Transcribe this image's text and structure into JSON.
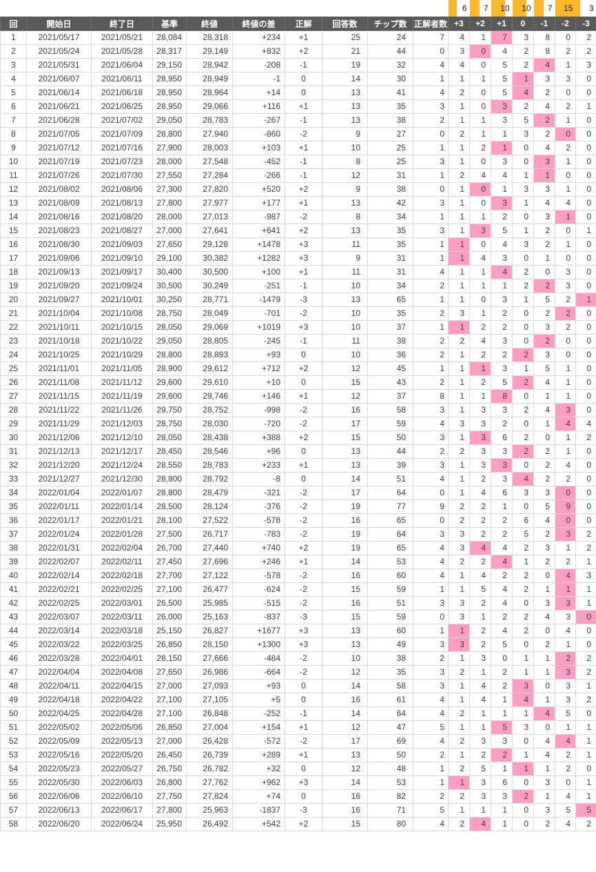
{
  "colors": {
    "header_bg": "#595959",
    "highlight_pink": "#FF9DC5",
    "bar_orange": "#FFB628"
  },
  "table": {
    "summary_bar": {
      "max": 15,
      "values": [
        6,
        7,
        10,
        10,
        7,
        15,
        3
      ]
    },
    "columns": [
      {
        "key": "round",
        "label": "回"
      },
      {
        "key": "start-date",
        "label": "開始日"
      },
      {
        "key": "end-date",
        "label": "終了日"
      },
      {
        "key": "base-price",
        "label": "基準"
      },
      {
        "key": "close-price",
        "label": "終値"
      },
      {
        "key": "close-diff",
        "label": "終値の差"
      },
      {
        "key": "correct-answer",
        "label": "正解"
      },
      {
        "key": "answer-count",
        "label": "回答数"
      },
      {
        "key": "chip-count",
        "label": "チップ数"
      },
      {
        "key": "winner-count",
        "label": "正解者数"
      },
      {
        "key": "dist-p3",
        "label": "+3"
      },
      {
        "key": "dist-p2",
        "label": "+2"
      },
      {
        "key": "dist-p1",
        "label": "+1"
      },
      {
        "key": "dist-0",
        "label": "0"
      },
      {
        "key": "dist-m1",
        "label": "-1"
      },
      {
        "key": "dist-m2",
        "label": "-2"
      },
      {
        "key": "dist-m3",
        "label": "-3"
      }
    ],
    "rows": [
      [
        1,
        "2021/05/17",
        "2021/05/21",
        "28,084",
        "28,318",
        "+234",
        "+1",
        25,
        24,
        7,
        4,
        1,
        7,
        3,
        8,
        0,
        2
      ],
      [
        2,
        "2021/05/24",
        "2021/05/28",
        "28,317",
        "29,149",
        "+832",
        "+2",
        21,
        44,
        0,
        3,
        0,
        4,
        2,
        8,
        2,
        2
      ],
      [
        3,
        "2021/05/31",
        "2021/06/04",
        "29,150",
        "28,942",
        "-208",
        "-1",
        19,
        32,
        4,
        4,
        0,
        5,
        2,
        4,
        1,
        3
      ],
      [
        4,
        "2021/06/07",
        "2021/06/11",
        "28,950",
        "28,949",
        "-1",
        "0",
        14,
        30,
        1,
        1,
        1,
        5,
        1,
        3,
        3,
        0
      ],
      [
        5,
        "2021/06/14",
        "2021/06/18",
        "28,950",
        "28,964",
        "+14",
        "0",
        13,
        41,
        4,
        2,
        0,
        5,
        4,
        2,
        0,
        0
      ],
      [
        6,
        "2021/06/21",
        "2021/06/25",
        "28,950",
        "29,066",
        "+116",
        "+1",
        13,
        35,
        3,
        1,
        0,
        3,
        2,
        4,
        2,
        1
      ],
      [
        7,
        "2021/06/28",
        "2021/07/02",
        "29,050",
        "28,783",
        "-267",
        "-1",
        13,
        38,
        2,
        1,
        1,
        3,
        5,
        2,
        1,
        0
      ],
      [
        8,
        "2021/07/05",
        "2021/07/09",
        "28,800",
        "27,940",
        "-860",
        "-2",
        9,
        27,
        0,
        2,
        1,
        1,
        3,
        2,
        0,
        0
      ],
      [
        9,
        "2021/07/12",
        "2021/07/16",
        "27,900",
        "28,003",
        "+103",
        "+1",
        10,
        25,
        1,
        1,
        2,
        1,
        0,
        4,
        2,
        0
      ],
      [
        10,
        "2021/07/19",
        "2021/07/23",
        "28,000",
        "27,548",
        "-452",
        "-1",
        8,
        25,
        3,
        1,
        0,
        3,
        0,
        3,
        1,
        0
      ],
      [
        11,
        "2021/07/26",
        "2021/07/30",
        "27,550",
        "27,284",
        "-266",
        "-1",
        12,
        31,
        1,
        2,
        4,
        4,
        1,
        1,
        0,
        0
      ],
      [
        12,
        "2021/08/02",
        "2021/08/06",
        "27,300",
        "27,820",
        "+520",
        "+2",
        9,
        38,
        0,
        1,
        0,
        1,
        3,
        3,
        1,
        0
      ],
      [
        13,
        "2021/08/09",
        "2021/08/13",
        "27,800",
        "27,977",
        "+177",
        "+1",
        13,
        42,
        3,
        1,
        0,
        3,
        1,
        4,
        4,
        0
      ],
      [
        14,
        "2021/08/16",
        "2021/08/20",
        "28,000",
        "27,013",
        "-987",
        "-2",
        8,
        34,
        1,
        1,
        1,
        2,
        0,
        3,
        1,
        0
      ],
      [
        15,
        "2021/08/23",
        "2021/08/27",
        "27,000",
        "27,641",
        "+641",
        "+2",
        13,
        35,
        3,
        1,
        3,
        5,
        1,
        2,
        0,
        1
      ],
      [
        16,
        "2021/08/30",
        "2021/09/03",
        "27,650",
        "29,128",
        "+1478",
        "+3",
        11,
        35,
        1,
        1,
        0,
        4,
        3,
        2,
        1,
        0
      ],
      [
        17,
        "2021/09/06",
        "2021/09/10",
        "29,100",
        "30,382",
        "+1282",
        "+3",
        9,
        31,
        1,
        1,
        4,
        3,
        0,
        1,
        0,
        0
      ],
      [
        18,
        "2021/09/13",
        "2021/09/17",
        "30,400",
        "30,500",
        "+100",
        "+1",
        11,
        31,
        4,
        1,
        1,
        4,
        2,
        0,
        3,
        0
      ],
      [
        19,
        "2021/09/20",
        "2021/09/24",
        "30,500",
        "30,249",
        "-251",
        "-1",
        10,
        34,
        2,
        1,
        1,
        1,
        2,
        2,
        3,
        0
      ],
      [
        20,
        "2021/09/27",
        "2021/10/01",
        "30,250",
        "28,771",
        "-1479",
        "-3",
        13,
        65,
        1,
        1,
        0,
        3,
        1,
        5,
        2,
        1
      ],
      [
        21,
        "2021/10/04",
        "2021/10/08",
        "28,750",
        "28,049",
        "-701",
        "-2",
        10,
        35,
        2,
        3,
        1,
        2,
        0,
        2,
        2,
        0
      ],
      [
        22,
        "2021/10/11",
        "2021/10/15",
        "28,050",
        "29,069",
        "+1019",
        "+3",
        10,
        37,
        1,
        1,
        2,
        2,
        0,
        3,
        2,
        0
      ],
      [
        23,
        "2021/10/18",
        "2021/10/22",
        "29,050",
        "28,805",
        "-245",
        "-1",
        11,
        38,
        2,
        2,
        4,
        3,
        0,
        2,
        0,
        0
      ],
      [
        24,
        "2021/10/25",
        "2021/10/29",
        "28,800",
        "28,893",
        "+93",
        "0",
        10,
        36,
        2,
        1,
        2,
        2,
        2,
        3,
        0,
        0
      ],
      [
        25,
        "2021/11/01",
        "2021/11/05",
        "28,900",
        "29,612",
        "+712",
        "+2",
        12,
        45,
        1,
        1,
        1,
        3,
        1,
        5,
        1,
        0
      ],
      [
        26,
        "2021/11/08",
        "2021/11/12",
        "29,600",
        "29,610",
        "+10",
        "0",
        15,
        43,
        2,
        1,
        2,
        5,
        2,
        4,
        1,
        0
      ],
      [
        27,
        "2021/11/15",
        "2021/11/19",
        "29,600",
        "29,746",
        "+146",
        "+1",
        12,
        37,
        8,
        1,
        1,
        8,
        0,
        1,
        1,
        0
      ],
      [
        28,
        "2021/11/22",
        "2021/11/26",
        "29,750",
        "28,752",
        "-998",
        "-2",
        16,
        58,
        3,
        1,
        3,
        3,
        2,
        4,
        3,
        0
      ],
      [
        29,
        "2021/11/29",
        "2021/12/03",
        "28,750",
        "28,030",
        "-720",
        "-2",
        17,
        59,
        4,
        3,
        3,
        2,
        0,
        1,
        4,
        4
      ],
      [
        30,
        "2021/12/06",
        "2021/12/10",
        "28,050",
        "28,438",
        "+388",
        "+2",
        15,
        50,
        3,
        1,
        3,
        6,
        2,
        0,
        1,
        2
      ],
      [
        31,
        "2021/12/13",
        "2021/12/17",
        "28,450",
        "28,546",
        "+96",
        "0",
        13,
        44,
        2,
        2,
        3,
        3,
        2,
        2,
        1,
        0
      ],
      [
        32,
        "2021/12/20",
        "2021/12/24",
        "28,550",
        "28,783",
        "+233",
        "+1",
        13,
        39,
        3,
        1,
        3,
        3,
        0,
        2,
        4,
        0
      ],
      [
        33,
        "2021/12/27",
        "2021/12/30",
        "28,800",
        "28,792",
        "-8",
        "0",
        14,
        51,
        4,
        1,
        2,
        3,
        4,
        2,
        2,
        0
      ],
      [
        34,
        "2022/01/04",
        "2022/01/07",
        "28,800",
        "28,479",
        "-321",
        "-2",
        17,
        64,
        0,
        1,
        4,
        6,
        3,
        3,
        0,
        0
      ],
      [
        35,
        "2022/01/11",
        "2022/01/14",
        "28,500",
        "28,124",
        "-376",
        "-2",
        19,
        77,
        9,
        2,
        2,
        1,
        0,
        5,
        9,
        0
      ],
      [
        36,
        "2022/01/17",
        "2022/01/21",
        "28,100",
        "27,522",
        "-578",
        "-2",
        16,
        65,
        0,
        2,
        2,
        2,
        6,
        4,
        0,
        0
      ],
      [
        37,
        "2022/01/24",
        "2022/01/28",
        "27,500",
        "26,717",
        "-783",
        "-2",
        19,
        64,
        3,
        3,
        2,
        2,
        5,
        2,
        3,
        2
      ],
      [
        38,
        "2022/01/31",
        "2022/02/04",
        "26,700",
        "27,440",
        "+740",
        "+2",
        19,
        65,
        4,
        3,
        4,
        4,
        2,
        3,
        1,
        2
      ],
      [
        39,
        "2022/02/07",
        "2022/02/11",
        "27,450",
        "27,696",
        "+246",
        "+1",
        14,
        53,
        4,
        2,
        2,
        4,
        1,
        2,
        2,
        1
      ],
      [
        40,
        "2022/02/14",
        "2022/02/18",
        "27,700",
        "27,122",
        "-578",
        "-2",
        16,
        60,
        4,
        1,
        4,
        2,
        2,
        0,
        4,
        3
      ],
      [
        41,
        "2022/02/21",
        "2022/02/25",
        "27,100",
        "26,477",
        "-624",
        "-2",
        15,
        59,
        1,
        1,
        5,
        4,
        2,
        1,
        1,
        1
      ],
      [
        42,
        "2022/02/25",
        "2022/03/01",
        "26,500",
        "25,985",
        "-515",
        "-2",
        16,
        51,
        3,
        3,
        2,
        4,
        0,
        3,
        3,
        1
      ],
      [
        43,
        "2022/03/07",
        "2022/03/11",
        "26,000",
        "25,163",
        "-837",
        "-3",
        15,
        59,
        0,
        3,
        1,
        2,
        2,
        4,
        3,
        0
      ],
      [
        44,
        "2022/03/14",
        "2022/03/18",
        "25,150",
        "26,827",
        "+1677",
        "+3",
        13,
        60,
        1,
        1,
        2,
        4,
        2,
        0,
        4,
        0
      ],
      [
        45,
        "2022/03/22",
        "2022/03/25",
        "26,850",
        "28,150",
        "+1300",
        "+3",
        13,
        49,
        3,
        3,
        2,
        5,
        0,
        2,
        1,
        0
      ],
      [
        46,
        "2022/03/28",
        "2022/04/01",
        "28,150",
        "27,666",
        "-484",
        "-2",
        10,
        38,
        2,
        1,
        3,
        0,
        1,
        1,
        2,
        2
      ],
      [
        47,
        "2022/04/04",
        "2022/04/08",
        "27,650",
        "26,986",
        "-664",
        "-2",
        12,
        35,
        3,
        2,
        1,
        2,
        1,
        1,
        3,
        2
      ],
      [
        48,
        "2022/04/11",
        "2022/04/15",
        "27,000",
        "27,093",
        "+93",
        "0",
        14,
        58,
        3,
        1,
        4,
        2,
        3,
        0,
        3,
        1
      ],
      [
        49,
        "2022/04/18",
        "2022/04/22",
        "27,100",
        "27,105",
        "+5",
        "0",
        16,
        61,
        4,
        1,
        4,
        1,
        4,
        1,
        3,
        2
      ],
      [
        50,
        "2022/04/25",
        "2022/04/28",
        "27,100",
        "26,848",
        "-252",
        "-1",
        14,
        64,
        4,
        2,
        1,
        1,
        1,
        4,
        5,
        0
      ],
      [
        51,
        "2022/05/02",
        "2022/05/06",
        "26,850",
        "27,004",
        "+154",
        "+1",
        12,
        47,
        5,
        1,
        1,
        5,
        3,
        0,
        1,
        1
      ],
      [
        52,
        "2022/05/09",
        "2022/05/13",
        "27,000",
        "26,428",
        "-572",
        "-2",
        17,
        69,
        4,
        2,
        3,
        3,
        0,
        4,
        4,
        1
      ],
      [
        53,
        "2022/05/16",
        "2022/05/20",
        "26,450",
        "26,739",
        "+289",
        "+1",
        13,
        50,
        2,
        1,
        2,
        2,
        1,
        4,
        2,
        1
      ],
      [
        54,
        "2022/05/23",
        "2022/05/27",
        "26,750",
        "26,782",
        "+32",
        "0",
        12,
        48,
        1,
        2,
        5,
        1,
        1,
        1,
        2,
        0
      ],
      [
        55,
        "2022/05/30",
        "2022/06/03",
        "26,800",
        "27,762",
        "+962",
        "+3",
        14,
        53,
        1,
        1,
        3,
        6,
        0,
        3,
        0,
        1
      ],
      [
        56,
        "2022/06/06",
        "2022/06/10",
        "27,750",
        "27,824",
        "+74",
        "0",
        16,
        82,
        2,
        2,
        3,
        3,
        2,
        1,
        4,
        1
      ],
      [
        57,
        "2022/06/13",
        "2022/06/17",
        "27,800",
        "25,963",
        "-1837",
        "-3",
        16,
        71,
        5,
        1,
        1,
        1,
        0,
        3,
        5,
        5
      ],
      [
        58,
        "2022/06/20",
        "2022/06/24",
        "25,950",
        "26,492",
        "+542",
        "+2",
        15,
        80,
        4,
        2,
        4,
        1,
        0,
        2,
        4,
        2
      ]
    ]
  }
}
